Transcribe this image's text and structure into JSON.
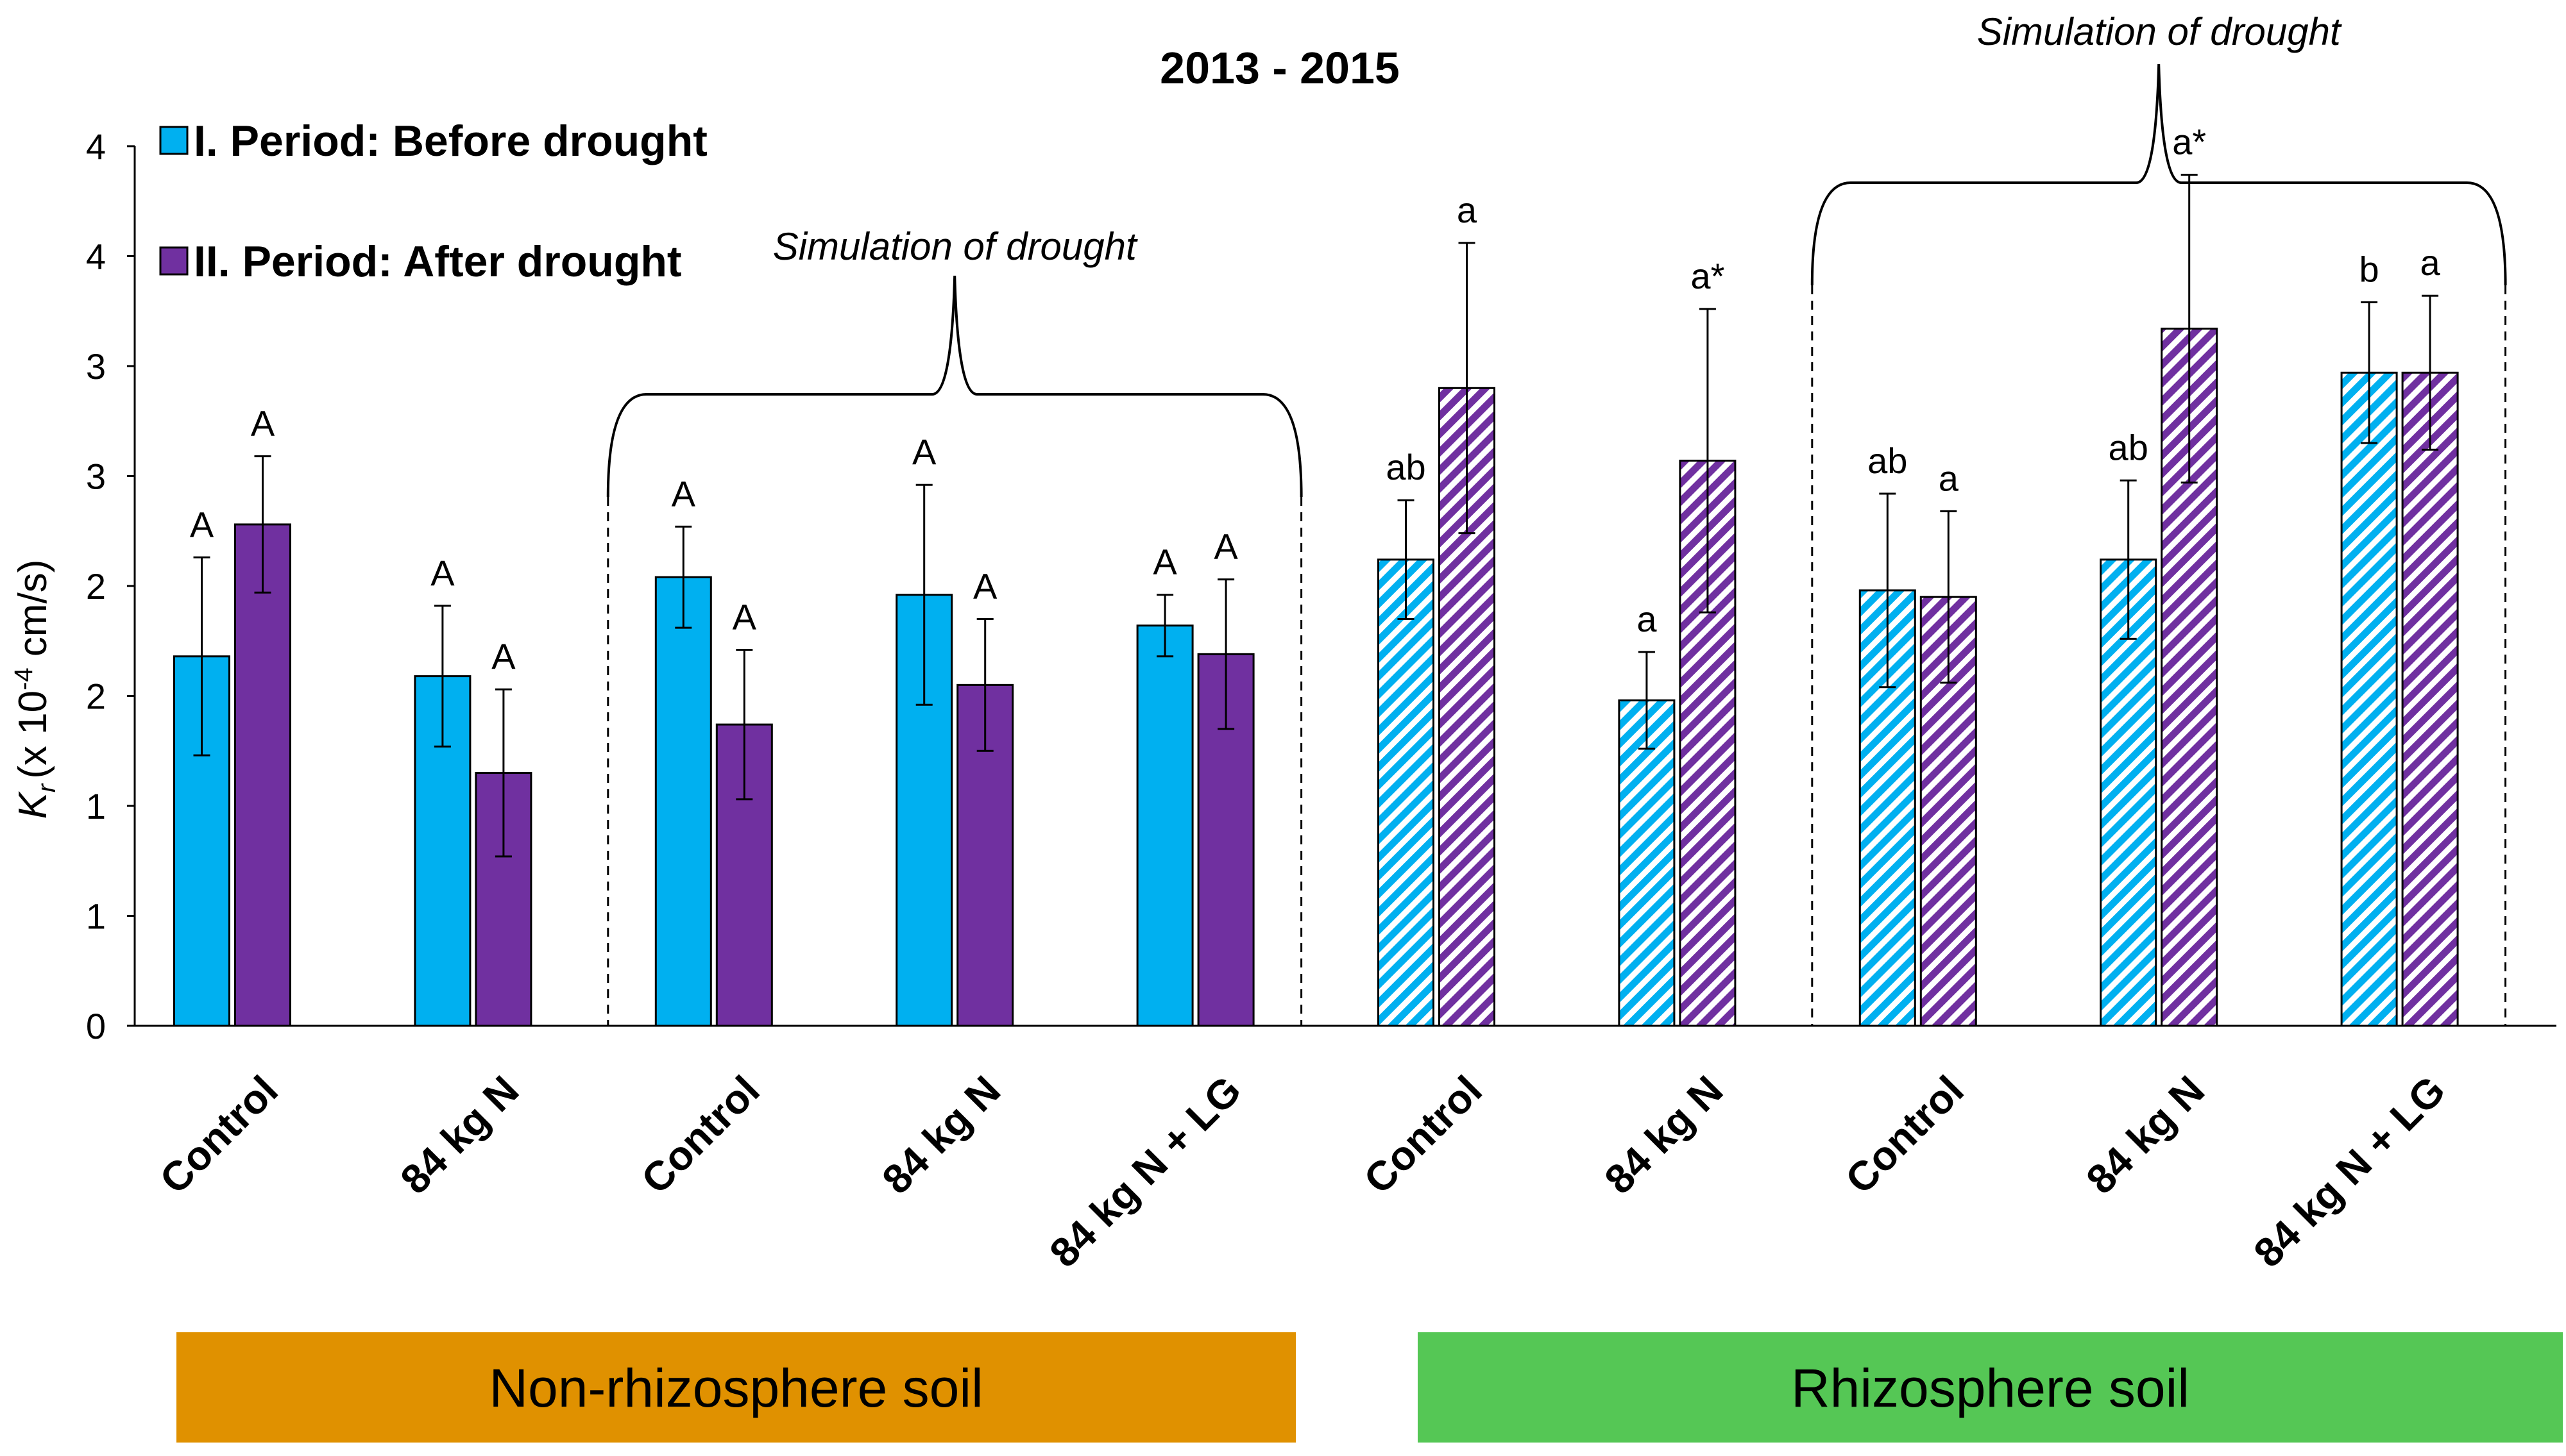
{
  "chart_data": {
    "type": "bar",
    "title": "2013 - 2015",
    "ylabel": "x 10-4 cm/s",
    "ylabel_symbol": "K",
    "ylabel_subscript": "r",
    "ylabel_exponent": "-4",
    "ylabel_parts": {
      "pre": "(x 10",
      "post": " cm/s)"
    },
    "ylim": [
      0,
      4
    ],
    "y_ticks": [
      {
        "value": 0,
        "label": "0"
      },
      {
        "value": 0.5,
        "label": "1"
      },
      {
        "value": 1,
        "label": "1"
      },
      {
        "value": 1.5,
        "label": "2"
      },
      {
        "value": 2,
        "label": "2"
      },
      {
        "value": 2.5,
        "label": "3"
      },
      {
        "value": 3,
        "label": "3"
      },
      {
        "value": 3.5,
        "label": "4"
      },
      {
        "value": 4,
        "label": "4"
      }
    ],
    "grid": false,
    "legend_position": "top-left",
    "categories": [
      "Control",
      "84 kg N",
      "Control",
      "84 kg N",
      "84 kg N + LG",
      "Control",
      "84 kg N",
      "Control",
      "84 kg N",
      "84 kg N + LG"
    ],
    "category_hatched": [
      false,
      false,
      false,
      false,
      false,
      true,
      true,
      true,
      true,
      true
    ],
    "series": [
      {
        "name": "I. Period: Before drought",
        "color": "#00b0f0",
        "values": [
          1.68,
          1.59,
          2.04,
          1.96,
          1.82,
          2.12,
          1.48,
          1.98,
          2.12,
          2.97
        ],
        "errors": [
          0.45,
          0.32,
          0.23,
          0.5,
          0.14,
          0.27,
          0.22,
          0.44,
          0.36,
          0.32
        ],
        "labels": [
          "A",
          "A",
          "A",
          "A",
          "A",
          "ab",
          "a",
          "ab",
          "ab",
          "b"
        ]
      },
      {
        "name": "II. Period: After drought",
        "color": "#7030a0",
        "values": [
          2.28,
          1.15,
          1.37,
          1.55,
          1.69,
          2.9,
          2.57,
          1.95,
          3.17,
          2.97
        ],
        "errors": [
          0.31,
          0.38,
          0.34,
          0.3,
          0.34,
          0.66,
          0.69,
          0.39,
          0.7,
          0.35
        ],
        "labels": [
          "A",
          "A",
          "A",
          "A",
          "A",
          "a",
          "a*",
          "a",
          "a*",
          "a"
        ]
      }
    ],
    "annotations": [
      {
        "text": "Simulation of drought",
        "from_category": 2,
        "to_category": 4
      },
      {
        "text": "Simulation of drought",
        "from_category": 7,
        "to_category": 9
      }
    ],
    "groups": [
      {
        "label": "Non-rhizosphere soil",
        "color": "#e09100",
        "from_category": 0,
        "to_category": 4
      },
      {
        "label": "Rhizosphere soil",
        "color": "#55c755",
        "from_category": 5,
        "to_category": 9
      }
    ]
  }
}
